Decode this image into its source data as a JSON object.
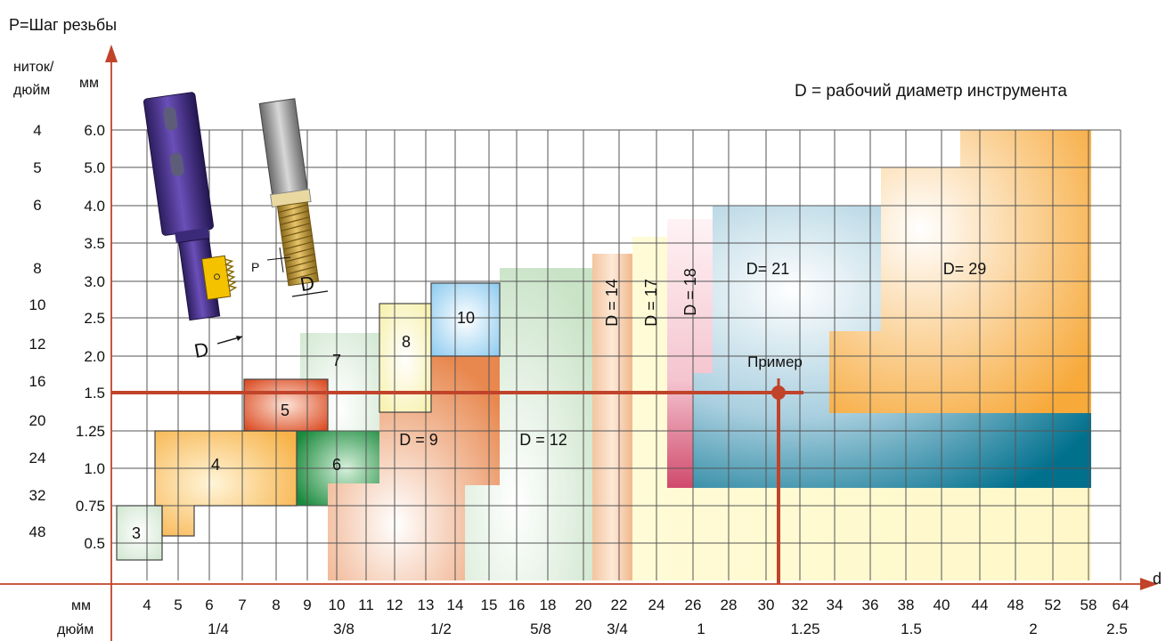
{
  "header": {
    "title": "P=Шаг резьбы",
    "tpi_label": "ниток/\nдюйм",
    "tpi_label_line1": "ниток/",
    "tpi_label_line2": "дюйм",
    "mm_label": "мм",
    "legend": "D = рабочий диаметр инструмента"
  },
  "axes": {
    "x_axis_symbol": "d",
    "x_mm_label": "мм",
    "x_inch_label": "дюйм",
    "x_mm_ticks": [
      "4",
      "5",
      "6",
      "7",
      "8",
      "9",
      "10",
      "11",
      "12",
      "13",
      "14",
      "15",
      "16",
      "18",
      "20",
      "22",
      "24",
      "26",
      "28",
      "30",
      "32",
      "34",
      "36",
      "38",
      "40",
      "44",
      "48",
      "52",
      "58",
      "64"
    ],
    "x_inch_ticks": [
      "1/4",
      "3/8",
      "1/2",
      "5/8",
      "3/4",
      "1",
      "1.25",
      "1.5",
      "2",
      "2.5"
    ],
    "y_pitch_ticks": [
      "0.5",
      "0.75",
      "1.0",
      "1.25",
      "1.5",
      "2.0",
      "2.5",
      "3.0",
      "3.5",
      "4.0",
      "5.0",
      "6.0"
    ],
    "y_tpi_ticks": [
      "48",
      "32",
      "24",
      "20",
      "16",
      "12",
      "10",
      "8",
      "6",
      "5",
      "4"
    ]
  },
  "regions": {
    "r3": "3",
    "r4": "4",
    "r5": "5",
    "r6": "6",
    "r7": "7",
    "r8": "8",
    "r10": "10",
    "r9": "D = 9",
    "r12": "D = 12",
    "r14": "D = 14",
    "r17": "D = 17",
    "r18": "D = 18",
    "r21": "D= 21",
    "r29": "D= 29"
  },
  "example": {
    "label": "Пример",
    "pitch_mm": "1.5",
    "diameter_mm": "30"
  },
  "tools": {
    "label_d1": "D",
    "label_d2": "D",
    "label_p": "P"
  },
  "colors": {
    "axis_red": "#c0432a",
    "grid": "#555555"
  }
}
